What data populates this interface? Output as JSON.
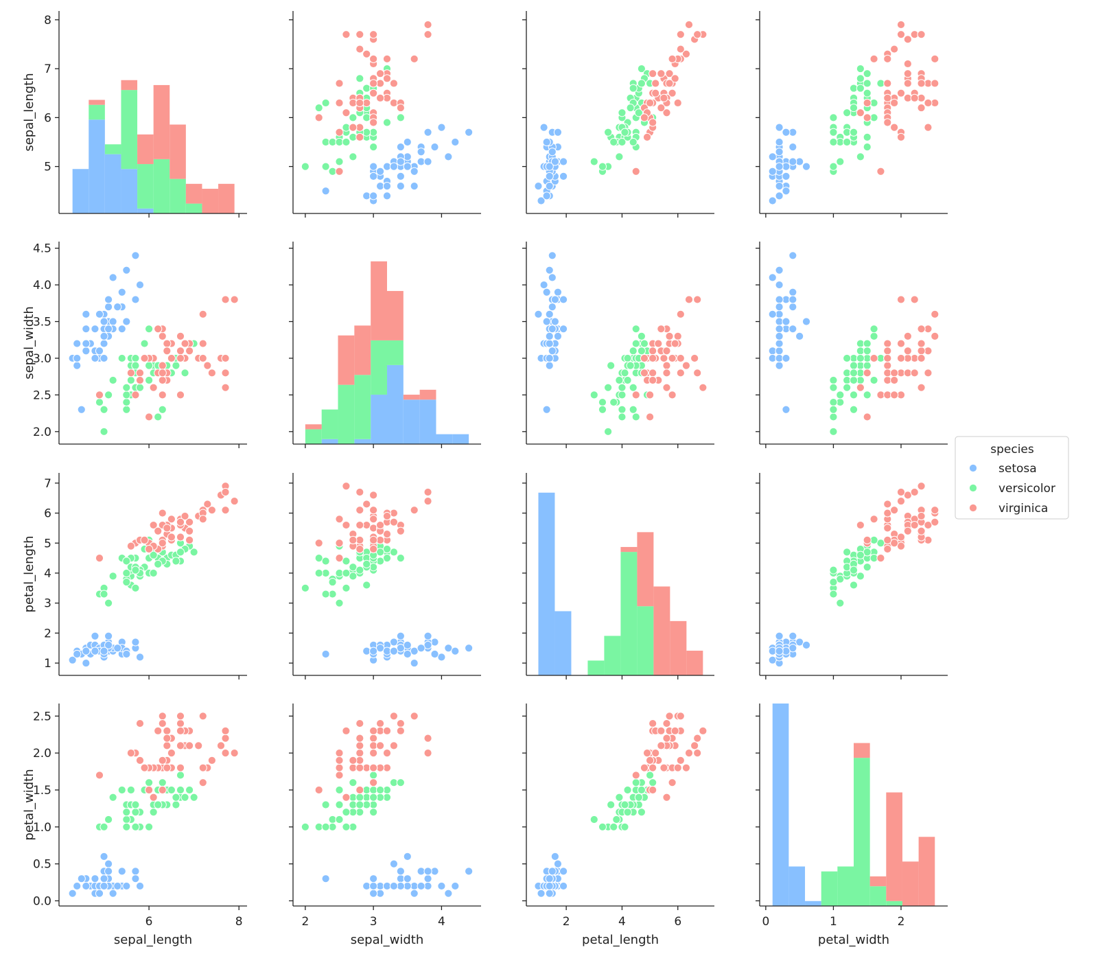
{
  "chart_data": {
    "type": "pairplot",
    "variables": [
      "sepal_length",
      "sepal_width",
      "petal_length",
      "petal_width"
    ],
    "axes": [
      {
        "xlim": [
          4.0,
          8.18
        ],
        "xticks": [
          6,
          8
        ],
        "ylim": [
          4.04,
          8.18
        ],
        "yticks": [
          5,
          6,
          7,
          8
        ]
      },
      {
        "xlim": [
          1.82,
          4.58
        ],
        "xticks": [
          2,
          3,
          4
        ],
        "ylim": [
          1.83,
          4.59
        ],
        "yticks": [
          {
            "value": 2,
            "label": "2.0"
          },
          2.5,
          {
            "value": 3,
            "label": "3.0"
          },
          3.5,
          {
            "value": 4,
            "label": "4.0"
          },
          4.5
        ]
      },
      {
        "xlim": [
          0.57,
          7.31
        ],
        "xticks": [
          2,
          4,
          6
        ],
        "ylim": [
          0.59,
          7.34
        ],
        "yticks": [
          1,
          2,
          3,
          4,
          5,
          6,
          7
        ]
      },
      {
        "xlim": [
          -0.09,
          2.69
        ],
        "xticks": [
          0,
          1,
          2
        ],
        "ylim": [
          -0.07,
          2.67
        ],
        "yticks": [
          {
            "value": 0,
            "label": "0.0"
          },
          0.5,
          {
            "value": 1,
            "label": "1.0"
          },
          1.5,
          {
            "value": 2,
            "label": "2.0"
          },
          2.5
        ]
      }
    ],
    "legend_title": "species",
    "legend_position": "right",
    "series": [
      {
        "name": "setosa",
        "color": "#88c0ff",
        "values": [
          [
            5.1,
            4.9,
            4.7,
            4.6,
            5.0,
            5.4,
            4.6,
            5.0,
            4.4,
            4.9,
            5.4,
            4.8,
            4.8,
            4.3,
            5.8,
            5.7,
            5.4,
            5.1,
            5.7,
            5.1,
            5.4,
            5.1,
            4.6,
            5.1,
            4.8,
            5.0,
            5.0,
            5.2,
            5.2,
            4.7,
            4.8,
            5.4,
            5.2,
            5.5,
            4.9,
            5.0,
            5.5,
            4.9,
            4.4,
            5.1,
            5.0,
            4.5,
            4.4,
            5.0,
            5.1,
            4.8,
            5.1,
            4.6,
            5.3,
            5.0
          ],
          [
            3.5,
            3.0,
            3.2,
            3.1,
            3.6,
            3.9,
            3.4,
            3.4,
            2.9,
            3.1,
            3.7,
            3.4,
            3.0,
            3.0,
            4.0,
            4.4,
            3.9,
            3.5,
            3.8,
            3.8,
            3.4,
            3.7,
            3.6,
            3.3,
            3.4,
            3.0,
            3.4,
            3.5,
            3.4,
            3.2,
            3.1,
            3.4,
            4.1,
            4.2,
            3.1,
            3.2,
            3.5,
            3.6,
            3.0,
            3.4,
            3.5,
            2.3,
            3.2,
            3.5,
            3.8,
            3.0,
            3.8,
            3.2,
            3.7,
            3.3
          ],
          [
            1.4,
            1.4,
            1.3,
            1.5,
            1.4,
            1.7,
            1.4,
            1.5,
            1.4,
            1.5,
            1.5,
            1.6,
            1.4,
            1.1,
            1.2,
            1.5,
            1.3,
            1.4,
            1.7,
            1.5,
            1.7,
            1.5,
            1.0,
            1.7,
            1.9,
            1.6,
            1.6,
            1.5,
            1.4,
            1.6,
            1.6,
            1.5,
            1.5,
            1.4,
            1.5,
            1.2,
            1.3,
            1.4,
            1.3,
            1.5,
            1.3,
            1.3,
            1.3,
            1.6,
            1.9,
            1.4,
            1.6,
            1.4,
            1.5,
            1.4
          ],
          [
            0.2,
            0.2,
            0.2,
            0.2,
            0.2,
            0.4,
            0.3,
            0.2,
            0.2,
            0.1,
            0.2,
            0.2,
            0.1,
            0.1,
            0.2,
            0.4,
            0.4,
            0.3,
            0.3,
            0.3,
            0.2,
            0.4,
            0.2,
            0.5,
            0.2,
            0.2,
            0.4,
            0.2,
            0.2,
            0.2,
            0.2,
            0.4,
            0.1,
            0.2,
            0.2,
            0.2,
            0.2,
            0.1,
            0.2,
            0.2,
            0.3,
            0.3,
            0.2,
            0.6,
            0.4,
            0.3,
            0.2,
            0.2,
            0.2,
            0.2
          ]
        ]
      },
      {
        "name": "versicolor",
        "color": "#7af5a2",
        "values": [
          [
            7.0,
            6.4,
            6.9,
            5.5,
            6.5,
            5.7,
            6.3,
            4.9,
            6.6,
            5.2,
            5.0,
            5.9,
            6.0,
            6.1,
            5.6,
            6.7,
            5.6,
            5.8,
            6.2,
            5.6,
            5.9,
            6.1,
            6.3,
            6.1,
            6.4,
            6.6,
            6.8,
            6.7,
            6.0,
            5.7,
            5.5,
            5.5,
            5.8,
            6.0,
            5.4,
            6.0,
            6.7,
            6.3,
            5.6,
            5.5,
            5.5,
            6.1,
            5.8,
            5.0,
            5.6,
            5.7,
            5.7,
            6.2,
            5.1,
            5.7
          ],
          [
            3.2,
            3.2,
            3.1,
            2.3,
            2.8,
            2.8,
            3.3,
            2.4,
            2.9,
            2.7,
            2.0,
            3.0,
            2.2,
            2.9,
            2.9,
            3.1,
            3.0,
            2.7,
            2.2,
            2.5,
            3.2,
            2.8,
            2.5,
            2.8,
            2.9,
            3.0,
            2.8,
            3.0,
            2.9,
            2.6,
            2.4,
            2.4,
            2.7,
            2.7,
            3.0,
            3.4,
            3.1,
            2.3,
            3.0,
            2.5,
            2.6,
            3.0,
            2.6,
            2.3,
            2.7,
            3.0,
            2.9,
            2.9,
            2.5,
            2.8
          ],
          [
            4.7,
            4.5,
            4.9,
            4.0,
            4.6,
            4.5,
            4.7,
            3.3,
            4.6,
            3.9,
            3.5,
            4.2,
            4.0,
            4.7,
            3.6,
            4.4,
            4.5,
            4.1,
            4.5,
            3.9,
            4.8,
            4.0,
            4.9,
            4.7,
            4.3,
            4.4,
            4.8,
            5.0,
            4.5,
            3.5,
            3.8,
            3.7,
            3.9,
            5.1,
            4.5,
            4.5,
            4.7,
            4.4,
            4.1,
            4.0,
            4.4,
            4.6,
            4.0,
            3.3,
            4.2,
            4.2,
            4.2,
            4.3,
            3.0,
            4.1
          ],
          [
            1.4,
            1.5,
            1.5,
            1.3,
            1.5,
            1.3,
            1.6,
            1.0,
            1.3,
            1.4,
            1.0,
            1.5,
            1.0,
            1.4,
            1.3,
            1.4,
            1.5,
            1.0,
            1.5,
            1.1,
            1.8,
            1.3,
            1.5,
            1.2,
            1.3,
            1.4,
            1.4,
            1.7,
            1.5,
            1.0,
            1.1,
            1.0,
            1.2,
            1.6,
            1.5,
            1.6,
            1.5,
            1.3,
            1.3,
            1.3,
            1.2,
            1.4,
            1.2,
            1.0,
            1.3,
            1.2,
            1.3,
            1.3,
            1.1,
            1.3
          ]
        ]
      },
      {
        "name": "virginica",
        "color": "#fa9891",
        "values": [
          [
            6.3,
            5.8,
            7.1,
            6.3,
            6.5,
            7.6,
            4.9,
            7.3,
            6.7,
            7.2,
            6.5,
            6.4,
            6.8,
            5.7,
            5.8,
            6.4,
            6.5,
            7.7,
            7.7,
            6.0,
            6.9,
            5.6,
            7.7,
            6.3,
            6.7,
            7.2,
            6.2,
            6.1,
            6.4,
            7.2,
            7.4,
            7.9,
            6.4,
            6.3,
            6.1,
            7.7,
            6.3,
            6.4,
            6.0,
            6.9,
            6.7,
            6.9,
            5.8,
            6.8,
            6.7,
            6.7,
            6.3,
            6.5,
            6.2,
            5.9
          ],
          [
            3.3,
            2.7,
            3.0,
            2.9,
            3.0,
            3.0,
            2.5,
            2.9,
            2.5,
            3.6,
            3.2,
            2.7,
            3.0,
            2.5,
            2.8,
            3.2,
            3.0,
            3.8,
            2.6,
            2.2,
            3.2,
            2.8,
            2.8,
            2.7,
            3.3,
            3.2,
            2.8,
            3.0,
            2.8,
            3.0,
            2.8,
            3.8,
            2.8,
            2.8,
            2.6,
            3.0,
            3.4,
            3.1,
            3.0,
            3.1,
            3.1,
            3.1,
            2.7,
            3.2,
            3.3,
            3.0,
            2.5,
            3.0,
            3.4,
            3.0
          ],
          [
            6.0,
            5.1,
            5.9,
            5.6,
            5.8,
            6.6,
            4.5,
            6.3,
            5.8,
            6.1,
            5.1,
            5.3,
            5.5,
            5.0,
            5.1,
            5.3,
            5.5,
            6.7,
            6.9,
            5.0,
            5.7,
            4.9,
            6.7,
            4.9,
            5.7,
            6.0,
            4.8,
            4.9,
            5.6,
            5.8,
            6.1,
            6.4,
            5.6,
            5.1,
            5.6,
            6.1,
            5.6,
            5.5,
            4.8,
            5.4,
            5.6,
            5.1,
            5.1,
            5.9,
            5.7,
            5.2,
            5.0,
            5.2,
            5.4,
            5.1
          ],
          [
            2.5,
            1.9,
            2.1,
            1.8,
            2.2,
            2.1,
            1.7,
            1.8,
            1.8,
            2.5,
            2.0,
            1.9,
            2.1,
            2.0,
            2.4,
            2.3,
            1.8,
            2.2,
            2.3,
            1.5,
            2.3,
            2.0,
            2.0,
            1.8,
            2.1,
            1.8,
            1.8,
            1.8,
            2.1,
            1.6,
            1.9,
            2.0,
            2.2,
            1.5,
            1.4,
            2.3,
            2.4,
            1.8,
            1.8,
            2.1,
            2.4,
            2.3,
            1.9,
            2.3,
            2.5,
            2.3,
            1.9,
            2.0,
            2.3,
            1.8
          ]
        ]
      }
    ],
    "histograms": [
      {
        "bins": [
          4.3,
          4.66,
          5.02,
          5.38,
          5.74,
          6.1,
          6.46,
          6.82,
          7.18,
          7.54,
          7.9
        ],
        "counts": [
          [
            9,
            19,
            12,
            9,
            1,
            0,
            0,
            0,
            0,
            0
          ],
          [
            0,
            3,
            2,
            16,
            9,
            11,
            7,
            2,
            0,
            0
          ],
          [
            0,
            1,
            0,
            2,
            6,
            15,
            11,
            4,
            5,
            6
          ]
        ]
      },
      {
        "bins": [
          2.0,
          2.24,
          2.48,
          2.72,
          2.96,
          3.2,
          3.44,
          3.68,
          3.92,
          4.16,
          4.4
        ],
        "counts": [
          [
            0,
            1,
            0,
            1,
            10,
            16,
            9,
            9,
            2,
            2
          ],
          [
            3,
            6,
            12,
            13,
            11,
            5,
            0,
            0,
            0,
            0
          ],
          [
            1,
            0,
            10,
            10,
            16,
            10,
            1,
            2,
            0,
            0
          ]
        ]
      },
      {
        "bins": [
          1.0,
          1.59,
          2.18,
          2.77,
          3.36,
          3.95,
          4.54,
          5.13,
          5.72,
          6.31,
          6.9
        ],
        "counts": [
          [
            37,
            13,
            0,
            0,
            0,
            0,
            0,
            0,
            0,
            0
          ],
          [
            0,
            0,
            0,
            3,
            8,
            25,
            14,
            0,
            0,
            0
          ],
          [
            0,
            0,
            0,
            0,
            0,
            1,
            15,
            18,
            11,
            5
          ]
        ]
      },
      {
        "bins": [
          0.1,
          0.34,
          0.58,
          0.82,
          1.06,
          1.3,
          1.54,
          1.78,
          2.02,
          2.26,
          2.5
        ],
        "counts": [
          [
            41,
            8,
            1,
            0,
            0,
            0,
            0,
            0,
            0,
            0
          ],
          [
            0,
            0,
            0,
            7,
            8,
            30,
            4,
            1,
            0,
            0
          ],
          [
            0,
            0,
            0,
            0,
            0,
            3,
            2,
            22,
            9,
            14
          ]
        ]
      }
    ]
  }
}
